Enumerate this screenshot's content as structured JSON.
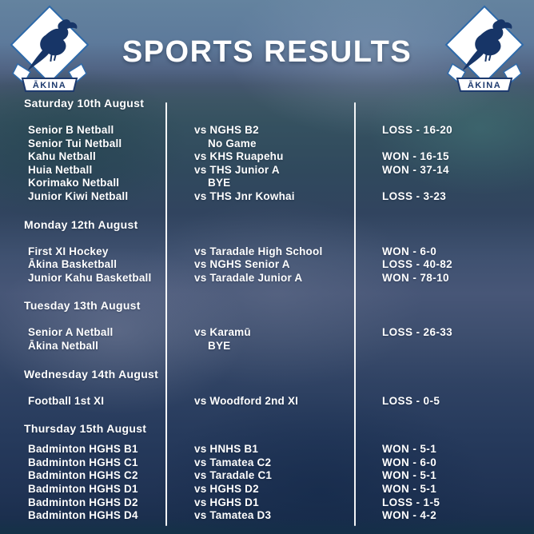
{
  "title": "SPORTS RESULTS",
  "crest": {
    "motto": "ĀKINA"
  },
  "sections": [
    {
      "date": "Saturday 10th August",
      "rows": [
        {
          "team": "Senior B Netball",
          "opponent": "vs NGHS B2",
          "result": "LOSS - 16-20"
        },
        {
          "team": "Senior Tui Netball",
          "opponent": "No Game",
          "result": ""
        },
        {
          "team": "Kahu Netball",
          "opponent": "vs KHS Ruapehu",
          "result": "WON - 16-15"
        },
        {
          "team": "Huia Netball",
          "opponent": "vs THS Junior A",
          "result": "WON - 37-14"
        },
        {
          "team": "Korimako Netball",
          "opponent": "BYE",
          "result": ""
        },
        {
          "team": "Junior Kiwi Netball",
          "opponent": "vs THS Jnr Kowhai",
          "result": "LOSS - 3-23"
        }
      ]
    },
    {
      "date": "Monday 12th August",
      "rows": [
        {
          "team": "First XI Hockey",
          "opponent": "vs Taradale High School",
          "result": "WON - 6-0"
        },
        {
          "team": "Ākina Basketball",
          "opponent": "vs NGHS Senior A",
          "result": "LOSS - 40-82"
        },
        {
          "team": "Junior Kahu Basketball",
          "opponent": "vs Taradale Junior A",
          "result": "WON - 78-10"
        }
      ]
    },
    {
      "date": "Tuesday 13th August",
      "rows": [
        {
          "team": "Senior A Netball",
          "opponent": "vs Karamū",
          "result": "LOSS - 26-33"
        },
        {
          "team": "Ākina Netball",
          "opponent": "BYE",
          "result": ""
        }
      ]
    },
    {
      "date": "Wednesday 14th August",
      "rows": [
        {
          "team": "Football 1st XI",
          "opponent": "vs Woodford 2nd XI",
          "result": "LOSS - 0-5"
        }
      ]
    },
    {
      "date": "Thursday 15th August",
      "rows": [
        {
          "team": "Badminton HGHS B1",
          "opponent": "vs HNHS B1",
          "result": "WON - 5-1"
        },
        {
          "team": "Badminton HGHS C1",
          "opponent": "vs Tamatea C2",
          "result": "WON - 6-0"
        },
        {
          "team": "Badminton HGHS C2",
          "opponent": "vs Taradale C1",
          "result": "WON - 5-1"
        },
        {
          "team": "Badminton HGHS D1",
          "opponent": "vs HGHS D2",
          "result": "WON - 5-1"
        },
        {
          "team": "Badminton HGHS D2",
          "opponent": "vs HGHS D1",
          "result": "LOSS - 1-5"
        },
        {
          "team": "Badminton HGHS D4",
          "opponent": "vs Tamatea D3",
          "result": "WON - 4-2"
        }
      ]
    }
  ]
}
